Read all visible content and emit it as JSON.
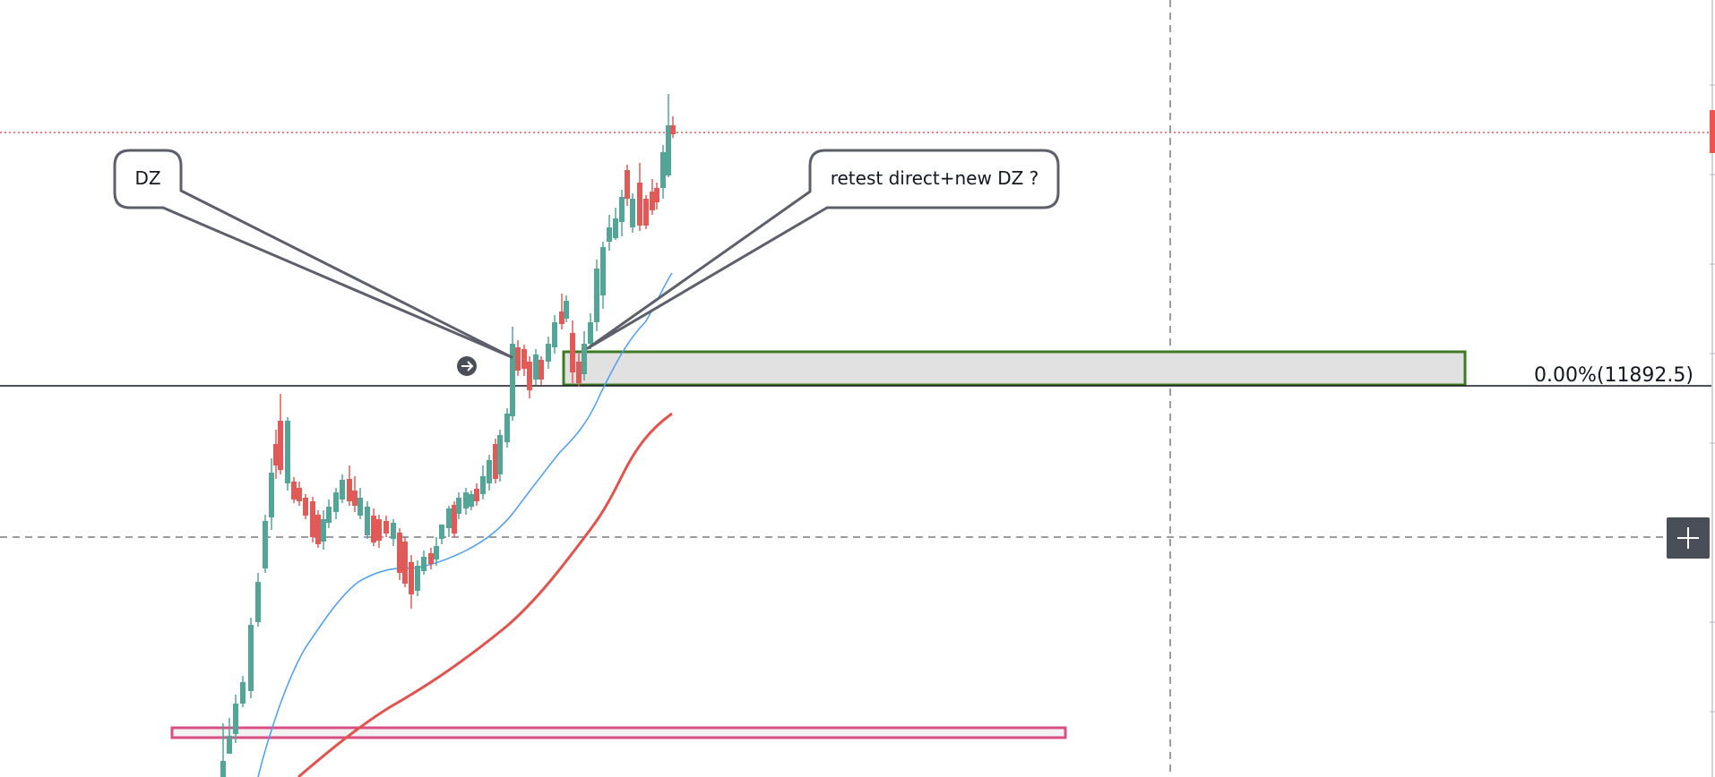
{
  "chart_data": {
    "type": "candlestick",
    "y_unit": "price",
    "annotations": [
      {
        "kind": "callout",
        "text": "DZ"
      },
      {
        "kind": "callout",
        "text": "retest direct+new DZ ?"
      }
    ],
    "levels": [
      {
        "label": "0.00%(11892.5)",
        "value": 11892.5,
        "style": "solid",
        "color": "#131722"
      }
    ],
    "zones": [
      {
        "name": "demand-zone",
        "border_color": "#3d7a22",
        "fill_color": "#e1e1e2"
      },
      {
        "name": "lower-zone",
        "border_color": "#d94f83",
        "fill_color": "#f2f2f2"
      }
    ],
    "moving_averages": [
      {
        "color": "#4a9ef2"
      },
      {
        "color": "#e2534d"
      }
    ],
    "colors": {
      "up": "#52a597",
      "down": "#e05a57",
      "last_price_line": "#ef5350",
      "crosshair": "#787b86"
    }
  },
  "ui": {
    "crosshair_button_icon": "plus-icon"
  }
}
